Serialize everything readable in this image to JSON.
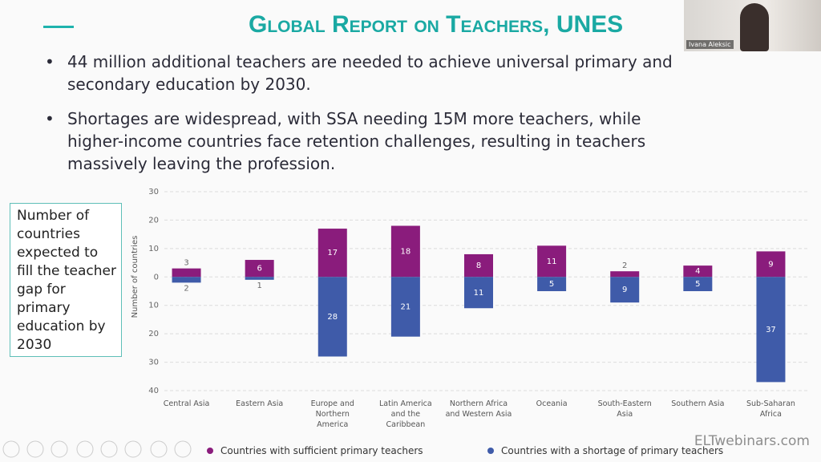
{
  "slide": {
    "title": "Global Report on Teachers, UNES",
    "bullets": [
      "44 million additional teachers are needed to achieve universal primary and secondary education by 2030.",
      "Shortages are widespread, with SSA needing 15M more teachers, while higher-income countries face retention challenges, resulting in teachers massively leaving the profession."
    ],
    "side_note": "Number of countries expected to fill the teacher gap for primary education by 2030"
  },
  "video": {
    "name": "Ivana Aleksic"
  },
  "watermark": "ELTwebinars.com",
  "chart_data": {
    "type": "diverging_bar",
    "y_label": "Number of countries",
    "categories": [
      "Central Asia",
      "Eastern Asia",
      "Europe and Northern America",
      "Latin America and the Caribbean",
      "Northern Africa and Western Asia",
      "Oceania",
      "South-Eastern Asia",
      "Southern Asia",
      "Sub-Saharan Africa"
    ],
    "series": [
      {
        "name": "Countries with sufficient primary teachers",
        "color": "#8a1c7c",
        "values": [
          3,
          6,
          17,
          18,
          8,
          11,
          2,
          4,
          9
        ]
      },
      {
        "name": "Countries with a shortage of primary teachers",
        "color": "#3f5ba9",
        "values": [
          -2,
          -1,
          -28,
          -21,
          -11,
          -5,
          -9,
          -5,
          -37
        ],
        "value_labels": [
          "2",
          "1",
          "28",
          "21",
          "11",
          "5",
          "9",
          "5",
          "37"
        ]
      }
    ],
    "ylim": [
      -40,
      30
    ],
    "yticks": [
      30,
      20,
      10,
      0,
      {
        "value": -10,
        "label": "10"
      },
      {
        "value": -20,
        "label": "20"
      },
      {
        "value": -30,
        "label": "30"
      },
      {
        "value": -40,
        "label": "40"
      }
    ],
    "grid": true
  }
}
